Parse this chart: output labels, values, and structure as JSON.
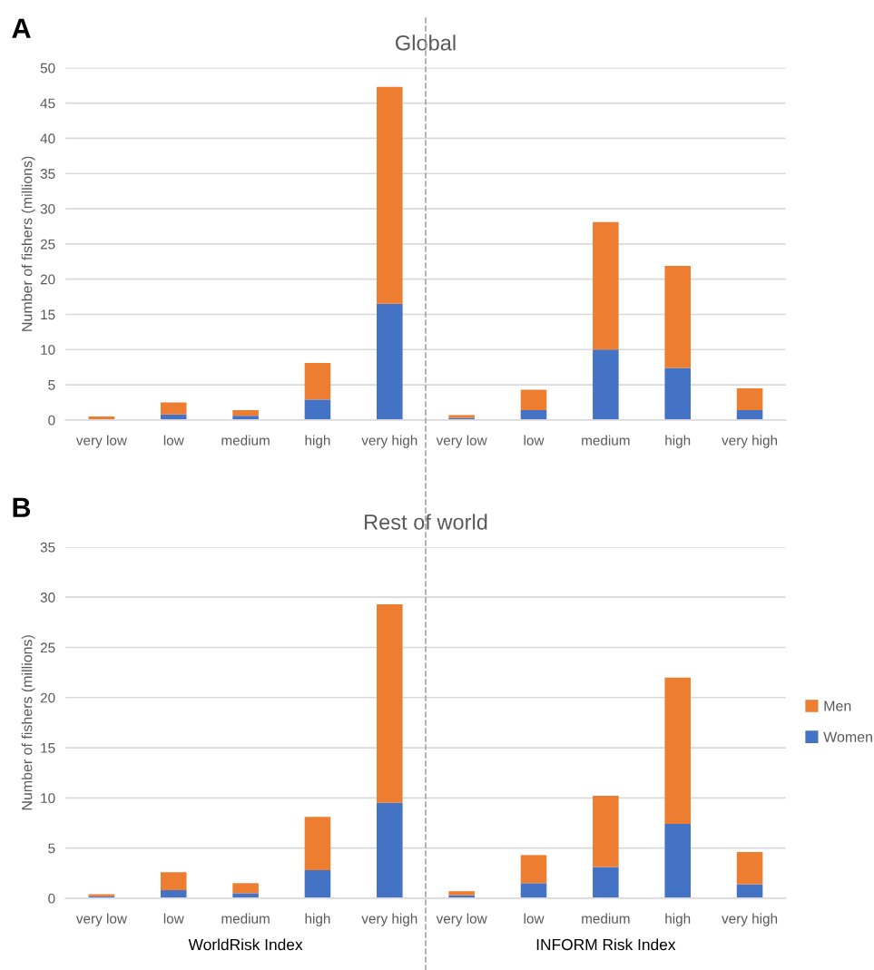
{
  "chart_data": [
    {
      "type": "bar",
      "title": "Global",
      "ylabel": "Number of fishers (millions)",
      "stacked": true,
      "categories": [
        "very low",
        "low",
        "medium",
        "high",
        "very high",
        "very low",
        "low",
        "medium",
        "high",
        "very high"
      ],
      "series": [
        {
          "color": "#4472c4",
          "values": [
            0,
            0.8,
            0.6,
            2.9,
            16.5,
            0.3,
            1.4,
            10.0,
            7.4,
            1.4
          ]
        },
        {
          "color": "#ed7d31",
          "values": [
            0.5,
            1.7,
            0.8,
            5.2,
            30.8,
            0.4,
            2.9,
            18.1,
            14.5,
            3.1
          ]
        }
      ],
      "ylim": [
        0,
        50
      ],
      "yticks": [
        0,
        5,
        10,
        15,
        20,
        25,
        30,
        35,
        40,
        45,
        50
      ],
      "grid": "y",
      "annotations": [
        "A"
      ]
    },
    {
      "type": "bar",
      "title": "Rest of world",
      "ylabel": "Number of fishers (millions)",
      "stacked": true,
      "categories": [
        "very low",
        "low",
        "medium",
        "high",
        "very high",
        "very low",
        "low",
        "medium",
        "high",
        "very high"
      ],
      "series": [
        {
          "name": "Women",
          "color": "#4472c4",
          "values": [
            0.2,
            0.8,
            0.5,
            2.8,
            9.5,
            0.3,
            1.5,
            3.1,
            7.4,
            1.4
          ]
        },
        {
          "name": "Men",
          "color": "#ed7d31",
          "values": [
            0.2,
            1.8,
            1.0,
            5.3,
            19.8,
            0.4,
            2.8,
            7.1,
            14.6,
            3.2
          ]
        }
      ],
      "ylim": [
        0,
        35
      ],
      "yticks": [
        0,
        5,
        10,
        15,
        20,
        25,
        30,
        35
      ],
      "grid": "y",
      "legend": "right",
      "annotations": [
        "B",
        "WorldRisk Index",
        "INFORM Risk Index"
      ]
    }
  ]
}
